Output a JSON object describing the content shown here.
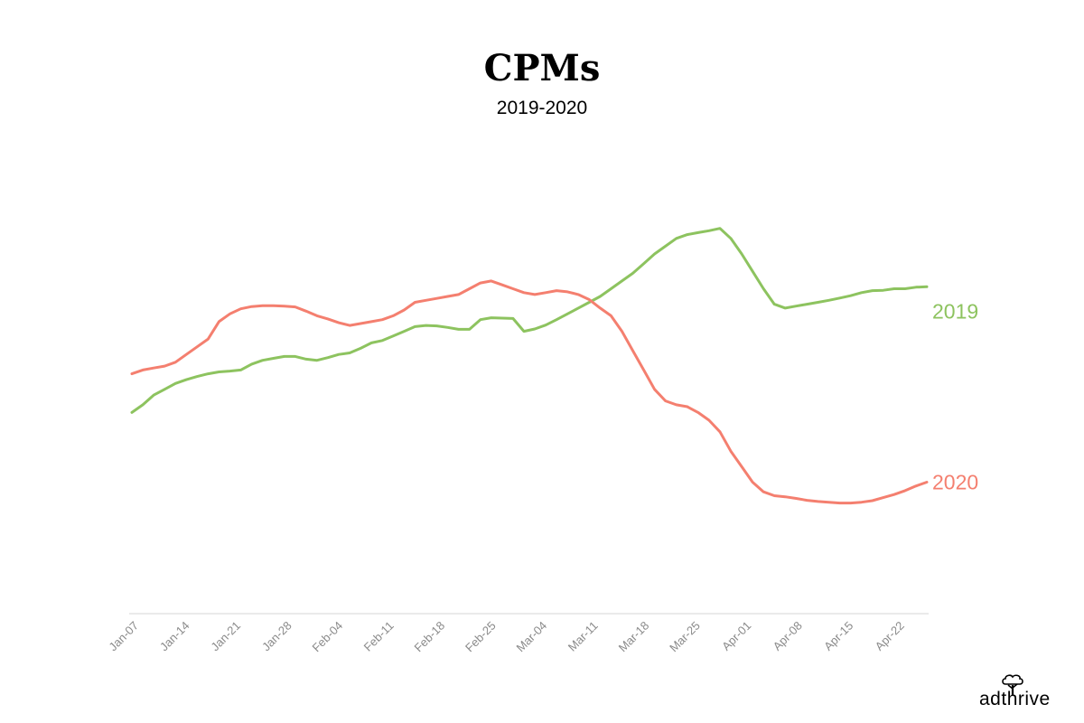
{
  "chart_data": {
    "type": "line",
    "title": "CPMs",
    "subtitle": "2019-2020",
    "xlabel": "",
    "ylabel": "",
    "x_ticks": [
      "Jan-07",
      "Jan-14",
      "Jan-21",
      "Jan-28",
      "Feb-04",
      "Feb-11",
      "Feb-18",
      "Feb-25",
      "Mar-04",
      "Mar-11",
      "Mar-18",
      "Mar-25",
      "Apr-01",
      "Apr-08",
      "Apr-15",
      "Apr-22"
    ],
    "x_day_range": [
      0,
      109
    ],
    "ylim": [
      0,
      100
    ],
    "grid": false,
    "legend": "direct labels at line ends",
    "series": [
      {
        "name": "2019",
        "color": "#8dc35f",
        "points": [
          [
            0,
            52
          ],
          [
            3,
            54
          ],
          [
            6,
            56.5
          ],
          [
            9,
            58
          ],
          [
            12,
            59.5
          ],
          [
            15,
            60.5
          ],
          [
            18,
            61.3
          ],
          [
            21,
            62
          ],
          [
            24,
            62.5
          ],
          [
            27,
            62.7
          ],
          [
            30,
            63
          ],
          [
            33,
            64.5
          ],
          [
            36,
            65.5
          ],
          [
            39,
            66
          ],
          [
            42,
            66.5
          ],
          [
            45,
            66.5
          ],
          [
            48,
            65.8
          ],
          [
            51,
            65.5
          ],
          [
            54,
            66.2
          ],
          [
            57,
            67
          ],
          [
            60,
            67.4
          ],
          [
            63,
            68.6
          ],
          [
            66,
            70
          ],
          [
            69,
            70.6
          ],
          [
            72,
            71.8
          ],
          [
            75,
            73
          ],
          [
            78,
            74.2
          ],
          [
            81,
            74.5
          ],
          [
            84,
            74.4
          ],
          [
            87,
            74
          ],
          [
            90,
            73.5
          ],
          [
            93,
            73.5
          ],
          [
            96,
            76
          ],
          [
            99,
            76.5
          ],
          [
            102,
            76.4
          ],
          [
            105,
            76.3
          ],
          [
            108,
            73
          ],
          [
            111,
            73.6
          ],
          [
            114,
            74.6
          ],
          [
            117,
            76
          ],
          [
            120,
            77.5
          ],
          [
            123,
            79
          ],
          [
            126,
            80.5
          ],
          [
            129,
            82
          ],
          [
            132,
            84
          ],
          [
            135,
            86
          ],
          [
            138,
            88
          ],
          [
            141,
            90.5
          ],
          [
            144,
            93
          ],
          [
            147,
            95
          ],
          [
            150,
            97
          ],
          [
            153,
            98
          ],
          [
            156,
            98.5
          ],
          [
            159,
            99
          ],
          [
            162,
            99.6
          ],
          [
            165,
            97
          ],
          [
            168,
            93
          ],
          [
            171,
            88.5
          ],
          [
            174,
            84
          ],
          [
            177,
            80
          ],
          [
            180,
            79
          ],
          [
            183,
            79.5
          ],
          [
            186,
            80
          ],
          [
            189,
            80.5
          ],
          [
            192,
            81
          ],
          [
            195,
            81.6
          ],
          [
            198,
            82.2
          ],
          [
            201,
            83
          ],
          [
            204,
            83.5
          ],
          [
            207,
            83.6
          ],
          [
            210,
            84
          ],
          [
            213,
            84
          ],
          [
            216,
            84.4
          ],
          [
            219,
            84.5
          ]
        ]
      },
      {
        "name": "2020",
        "color": "#f47f6f",
        "points": [
          [
            0,
            62
          ],
          [
            3,
            63
          ],
          [
            6,
            63.5
          ],
          [
            9,
            64
          ],
          [
            12,
            65
          ],
          [
            15,
            67
          ],
          [
            18,
            69
          ],
          [
            21,
            71
          ],
          [
            24,
            75.5
          ],
          [
            27,
            77.5
          ],
          [
            30,
            78.8
          ],
          [
            33,
            79.4
          ],
          [
            36,
            79.6
          ],
          [
            39,
            79.6
          ],
          [
            42,
            79.5
          ],
          [
            45,
            79.3
          ],
          [
            48,
            78.2
          ],
          [
            51,
            77
          ],
          [
            54,
            76.2
          ],
          [
            57,
            75.2
          ],
          [
            60,
            74.5
          ],
          [
            63,
            75
          ],
          [
            66,
            75.5
          ],
          [
            69,
            76
          ],
          [
            72,
            77
          ],
          [
            75,
            78.5
          ],
          [
            78,
            80.5
          ],
          [
            81,
            81
          ],
          [
            84,
            81.5
          ],
          [
            87,
            82
          ],
          [
            90,
            82.5
          ],
          [
            93,
            84
          ],
          [
            96,
            85.5
          ],
          [
            99,
            86
          ],
          [
            102,
            85
          ],
          [
            105,
            84
          ],
          [
            108,
            83
          ],
          [
            111,
            82.5
          ],
          [
            114,
            83
          ],
          [
            117,
            83.5
          ],
          [
            120,
            83.2
          ],
          [
            123,
            82.5
          ],
          [
            126,
            81.2
          ],
          [
            129,
            79
          ],
          [
            132,
            77
          ],
          [
            135,
            73
          ],
          [
            138,
            68
          ],
          [
            141,
            63
          ],
          [
            144,
            58
          ],
          [
            147,
            55
          ],
          [
            150,
            54
          ],
          [
            153,
            53.5
          ],
          [
            156,
            52
          ],
          [
            159,
            50
          ],
          [
            162,
            47
          ],
          [
            165,
            42
          ],
          [
            168,
            38
          ],
          [
            171,
            34
          ],
          [
            174,
            31.5
          ],
          [
            177,
            30.5
          ],
          [
            180,
            30.2
          ],
          [
            183,
            29.8
          ],
          [
            186,
            29.3
          ],
          [
            189,
            29
          ],
          [
            192,
            28.8
          ],
          [
            195,
            28.6
          ],
          [
            198,
            28.6
          ],
          [
            201,
            28.8
          ],
          [
            204,
            29.2
          ],
          [
            207,
            30
          ],
          [
            210,
            30.8
          ],
          [
            213,
            31.8
          ],
          [
            216,
            33
          ],
          [
            219,
            34
          ]
        ]
      }
    ]
  },
  "brand": {
    "logo_text": "adthrive"
  }
}
